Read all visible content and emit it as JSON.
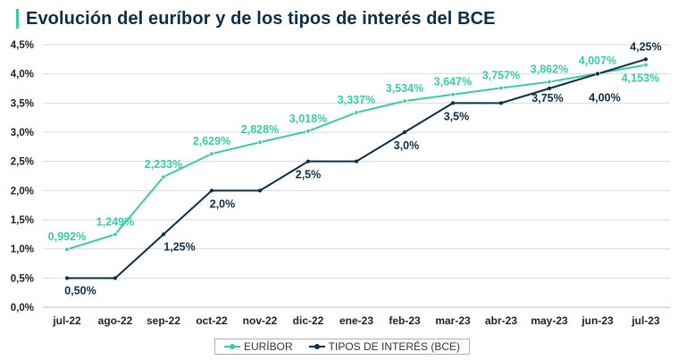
{
  "title": "Evolución del euríbor y de los tipos de interés del BCE",
  "colors": {
    "euribor": "#3cc9a8",
    "bce": "#0f2d45",
    "grid": "#d9d9d9",
    "axis_text": "#222222"
  },
  "legend": {
    "euribor_label": "EURÍBOR",
    "bce_label": "TIPOS DE INTERÉS (BCE)",
    "placement": "bottom"
  },
  "chart_data": {
    "type": "line",
    "title": "Evolución del euríbor y de los tipos de interés del BCE",
    "categories": [
      "jul-22",
      "ago-22",
      "sep-22",
      "oct-22",
      "nov-22",
      "dic-22",
      "ene-23",
      "feb-23",
      "mar-23",
      "abr-23",
      "may-23",
      "jun-23",
      "jul-23"
    ],
    "ylim": [
      0,
      4.5
    ],
    "yticks": [
      "0,0%",
      "0,5%",
      "1,0%",
      "1,5%",
      "2,0%",
      "2,5%",
      "3,0%",
      "3,5%",
      "4,0%",
      "4,5%"
    ],
    "grid": true,
    "series": [
      {
        "name": "EURÍBOR",
        "step": false,
        "values": [
          0.992,
          1.249,
          2.233,
          2.629,
          2.828,
          3.018,
          3.337,
          3.534,
          3.647,
          3.757,
          3.862,
          4.007,
          4.153
        ],
        "labels": [
          "0,992%",
          "1,249%",
          "2,233%",
          "2,629%",
          "2,828%",
          "3,018%",
          "3,337%",
          "3,534%",
          "3,647%",
          "3,757%",
          "3,862%",
          "4,007%",
          "4,153%"
        ]
      },
      {
        "name": "TIPOS DE INTERÉS (BCE)",
        "step": true,
        "values": [
          0.5,
          0.5,
          1.25,
          2.0,
          2.0,
          2.5,
          2.5,
          3.0,
          3.5,
          3.5,
          3.75,
          4.0,
          4.25
        ],
        "labels": [
          "0,50%",
          "",
          "1,25%",
          "2,0%",
          "",
          "2,5%",
          "",
          "3,0%",
          "3,5%",
          "",
          "3,75%",
          "4,00%",
          "4,25%"
        ]
      }
    ]
  }
}
